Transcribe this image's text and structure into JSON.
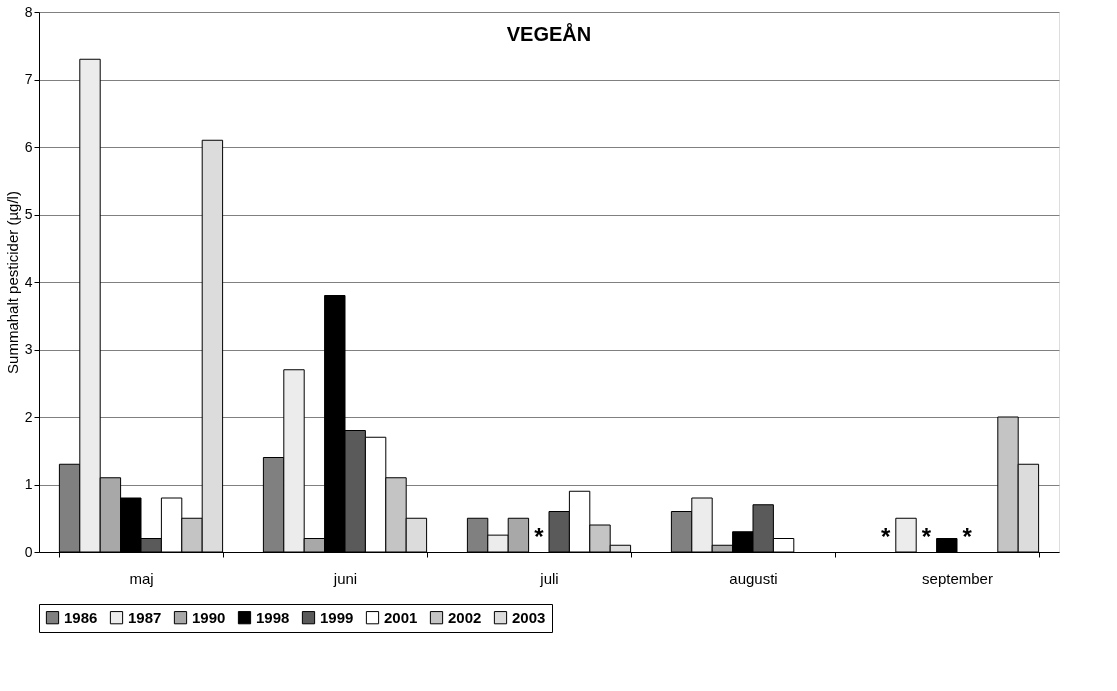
{
  "chart_data": {
    "type": "bar",
    "title": "VEGEÅN",
    "ylabel": "Summahalt pesticider (µg/l)",
    "categories": [
      "maj",
      "juni",
      "juli",
      "augusti",
      "september"
    ],
    "series": [
      {
        "name": "1986",
        "color": "#808080",
        "values": [
          1.3,
          1.4,
          0.5,
          0.6,
          null
        ],
        "value_labels": [
          null,
          null,
          null,
          null,
          "*"
        ]
      },
      {
        "name": "1987",
        "color": "#ececec",
        "values": [
          7.3,
          2.7,
          0.25,
          0.8,
          0.5
        ]
      },
      {
        "name": "1990",
        "color": "#a8a8a8",
        "values": [
          1.1,
          0.2,
          0.5,
          0.1,
          null
        ],
        "value_labels": [
          null,
          null,
          null,
          null,
          "*"
        ]
      },
      {
        "name": "1998",
        "color": "#000000",
        "values": [
          0.8,
          3.8,
          null,
          0.3,
          0.2
        ],
        "value_labels": [
          null,
          null,
          "*",
          null,
          null
        ]
      },
      {
        "name": "1999",
        "color": "#5a5a5a",
        "values": [
          0.2,
          1.8,
          0.6,
          0.7,
          null
        ],
        "value_labels": [
          null,
          null,
          null,
          null,
          "*"
        ]
      },
      {
        "name": "2001",
        "color": "#ffffff",
        "values": [
          0.8,
          1.7,
          0.9,
          0.2,
          null
        ]
      },
      {
        "name": "2002",
        "color": "#c4c4c4",
        "values": [
          0.5,
          1.1,
          0.4,
          null,
          2.0
        ]
      },
      {
        "name": "2003",
        "color": "#dcdcdc",
        "values": [
          6.1,
          0.5,
          0.1,
          null,
          1.3
        ]
      }
    ],
    "ylim": [
      0,
      8
    ],
    "yticks": [
      0,
      1,
      2,
      3,
      4,
      5,
      6,
      7,
      8
    ],
    "grid": "y",
    "legend": "bottom"
  }
}
